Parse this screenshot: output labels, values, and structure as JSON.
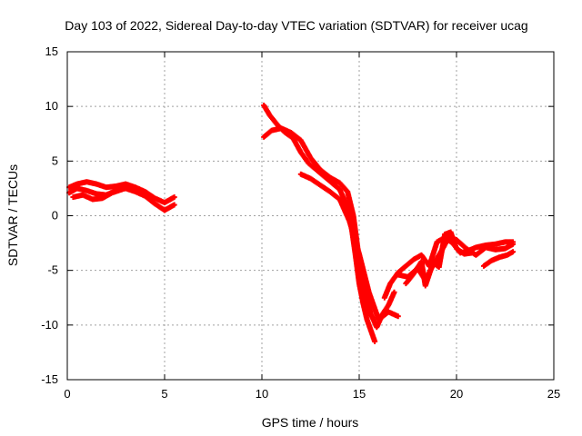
{
  "chart_data": {
    "type": "scatter",
    "title": "Day 103 of 2022, Sidereal Day-to-day VTEC variation (SDTVAR) for receiver ucag",
    "xlabel": "GPS time / hours",
    "ylabel": "SDTVAR / TECUs",
    "xlim": [
      0,
      25
    ],
    "ylim": [
      -15,
      15
    ],
    "xticks": [
      0,
      5,
      10,
      15,
      20,
      25
    ],
    "yticks": [
      -15,
      -10,
      -5,
      0,
      5,
      10,
      15
    ],
    "xtick_labels": [
      "0",
      "5",
      "10",
      "15",
      "20",
      "25"
    ],
    "ytick_labels": [
      "-15",
      "-10",
      "-5",
      "0",
      "5",
      "10",
      "15"
    ],
    "grid": true,
    "marker_color": "#ff0000",
    "series": [
      {
        "name": "track-early-a",
        "x": [
          0.1,
          0.5,
          1.0,
          1.5,
          2.0,
          2.5,
          3.0,
          3.5,
          4.0,
          4.5,
          5.0,
          5.5
        ],
        "y": [
          2.6,
          2.9,
          3.1,
          2.9,
          2.6,
          2.7,
          2.9,
          2.6,
          2.2,
          1.6,
          1.2,
          1.7
        ]
      },
      {
        "name": "track-early-b",
        "x": [
          0.1,
          0.5,
          1.0,
          1.5,
          2.0,
          2.5,
          3.0,
          3.5,
          4.0,
          4.5,
          5.0,
          5.5
        ],
        "y": [
          2.1,
          2.5,
          2.3,
          2.0,
          1.9,
          2.3,
          2.5,
          2.2,
          1.8,
          1.1,
          0.5,
          1.0
        ]
      },
      {
        "name": "track-early-c",
        "x": [
          0.3,
          0.8,
          1.3,
          1.8,
          2.3,
          2.8
        ],
        "y": [
          1.7,
          1.9,
          1.5,
          1.6,
          2.1,
          2.4
        ]
      },
      {
        "name": "track-main-a",
        "x": [
          10.1,
          10.4,
          10.8,
          11.2,
          11.6,
          12.0,
          12.4,
          12.8,
          13.2,
          13.6,
          14.0,
          14.3,
          14.6,
          14.8,
          15.0,
          15.2,
          15.4,
          15.6,
          15.8
        ],
        "y": [
          10.1,
          9.2,
          8.3,
          7.6,
          7.1,
          5.8,
          4.8,
          4.2,
          3.6,
          3.0,
          2.4,
          1.2,
          -1.0,
          -3.5,
          -6.2,
          -8.0,
          -9.5,
          -10.5,
          -11.5
        ]
      },
      {
        "name": "track-main-b",
        "x": [
          10.1,
          10.5,
          11.0,
          11.5,
          12.0,
          12.5,
          13.0,
          13.5,
          14.0,
          14.4,
          14.7,
          15.0,
          15.3,
          15.6,
          15.9,
          16.2,
          16.5,
          16.8
        ],
        "y": [
          7.2,
          7.8,
          8.0,
          7.6,
          6.9,
          5.3,
          4.2,
          3.5,
          3.0,
          2.2,
          0.0,
          -4.0,
          -7.0,
          -9.0,
          -10.2,
          -9.0,
          -8.2,
          -7.0
        ]
      },
      {
        "name": "track-main-c",
        "x": [
          12.0,
          12.5,
          13.0,
          13.5,
          14.0,
          14.5,
          15.0,
          15.5,
          16.0,
          16.5,
          17.0
        ],
        "y": [
          3.8,
          3.4,
          2.8,
          2.2,
          1.5,
          -0.5,
          -3.5,
          -7.0,
          -9.5,
          -8.8,
          -9.2
        ]
      },
      {
        "name": "track-late-a",
        "x": [
          16.3,
          16.6,
          17.0,
          17.4,
          17.8,
          18.2,
          18.6,
          19.0,
          19.4,
          19.8,
          20.2,
          20.6,
          21.0,
          21.5,
          22.0,
          22.5,
          22.9
        ],
        "y": [
          -7.5,
          -6.2,
          -5.2,
          -4.6,
          -4.0,
          -3.6,
          -4.6,
          -2.4,
          -2.0,
          -2.5,
          -3.4,
          -3.2,
          -2.9,
          -2.7,
          -2.6,
          -2.4,
          -2.4
        ]
      },
      {
        "name": "track-late-b",
        "x": [
          17.0,
          17.5,
          18.0,
          18.4,
          18.8,
          19.2,
          19.6,
          20.0,
          20.5,
          21.0,
          21.5,
          22.0,
          22.5,
          22.9
        ],
        "y": [
          -5.4,
          -5.6,
          -4.8,
          -5.9,
          -4.5,
          -3.3,
          -2.0,
          -2.2,
          -3.0,
          -3.6,
          -2.9,
          -3.1,
          -3.0,
          -2.6
        ]
      },
      {
        "name": "track-late-c",
        "x": [
          17.4,
          17.8,
          18.2,
          18.4,
          18.8,
          19.1,
          19.4,
          19.7,
          20.0,
          20.4,
          20.8
        ],
        "y": [
          -6.2,
          -5.3,
          -4.2,
          -6.4,
          -4.3,
          -4.7,
          -1.7,
          -1.5,
          -3.0,
          -3.5,
          -3.4
        ]
      },
      {
        "name": "track-late-d",
        "x": [
          21.4,
          21.8,
          22.2,
          22.6,
          22.9
        ],
        "y": [
          -4.6,
          -4.1,
          -3.8,
          -3.6,
          -3.3
        ]
      }
    ]
  }
}
